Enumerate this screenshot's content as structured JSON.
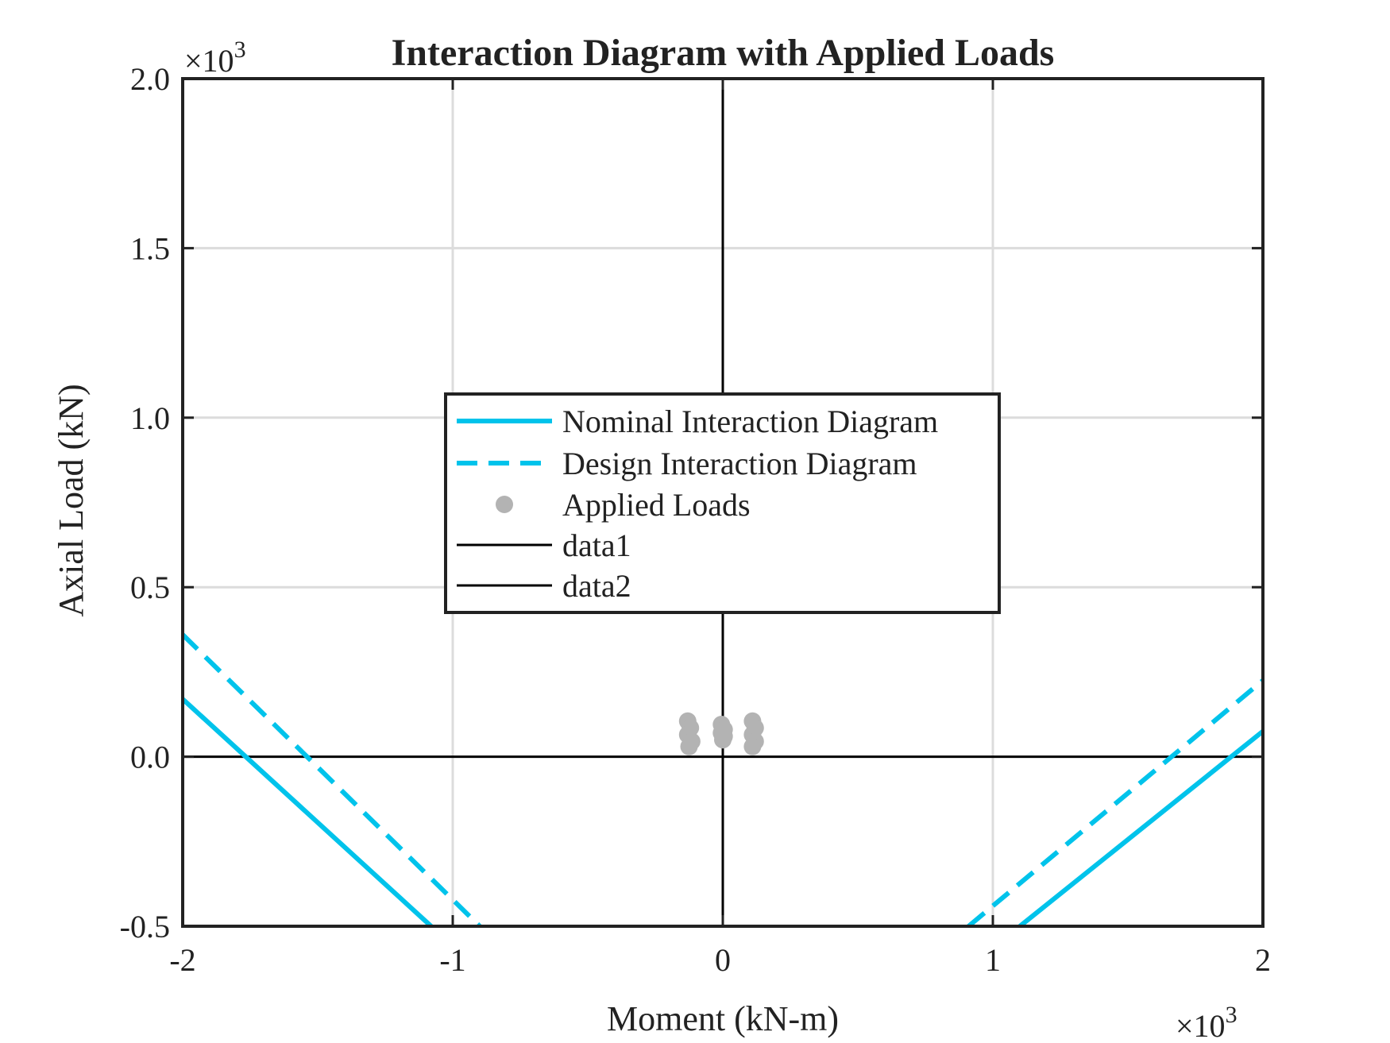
{
  "chart_data": {
    "type": "line",
    "title": "Interaction Diagram with Applied Loads",
    "xlabel": "Moment (kN-m)",
    "ylabel": "Axial Load (kN)",
    "x_exponent_label": "×10",
    "x_exponent_power": "3",
    "y_exponent_label": "×10",
    "y_exponent_power": "3",
    "xlim": [
      -2000,
      2000
    ],
    "ylim": [
      -500,
      2000
    ],
    "x_ticks": [
      -2000,
      -1000,
      0,
      1000,
      2000
    ],
    "x_tick_labels": [
      "-2",
      "-1",
      "0",
      "1",
      "2"
    ],
    "y_ticks": [
      -500,
      0,
      500,
      1000,
      1500,
      2000
    ],
    "y_tick_labels": [
      "-0.5",
      "0.0",
      "0.5",
      "1.0",
      "1.5",
      "2.0"
    ],
    "grid": true,
    "legend_position": "center",
    "colors": {
      "nominal": "#00c3eb",
      "design": "#00c3eb",
      "applied": "#b3b3b3",
      "reference": "#000000"
    },
    "series": [
      {
        "name": "Nominal Interaction Diagram",
        "style": "solid",
        "segments": [
          [
            [
              -2000,
              170
            ],
            [
              -1080,
              -500
            ]
          ],
          [
            [
              1100,
              -500
            ],
            [
              2000,
              75
            ]
          ]
        ]
      },
      {
        "name": "Design Interaction Diagram",
        "style": "dashed",
        "segments": [
          [
            [
              -2000,
              360
            ],
            [
              -900,
              -500
            ]
          ],
          [
            [
              910,
              -500
            ],
            [
              2000,
              225
            ]
          ]
        ]
      },
      {
        "name": "Applied Loads",
        "style": "markers",
        "points": [
          [
            -130,
            105
          ],
          [
            -120,
            85
          ],
          [
            -130,
            65
          ],
          [
            -115,
            45
          ],
          [
            -125,
            30
          ],
          [
            -5,
            95
          ],
          [
            5,
            80
          ],
          [
            -5,
            70
          ],
          [
            5,
            60
          ],
          [
            0,
            50
          ],
          [
            110,
            105
          ],
          [
            120,
            85
          ],
          [
            110,
            65
          ],
          [
            120,
            45
          ],
          [
            110,
            30
          ]
        ]
      },
      {
        "name": "data1",
        "style": "solid-thin",
        "segments": [
          [
            [
              -2000,
              0
            ],
            [
              2000,
              0
            ]
          ]
        ]
      },
      {
        "name": "data2",
        "style": "solid-thin",
        "segments": [
          [
            [
              0,
              -500
            ],
            [
              0,
              2000
            ]
          ]
        ]
      }
    ]
  }
}
